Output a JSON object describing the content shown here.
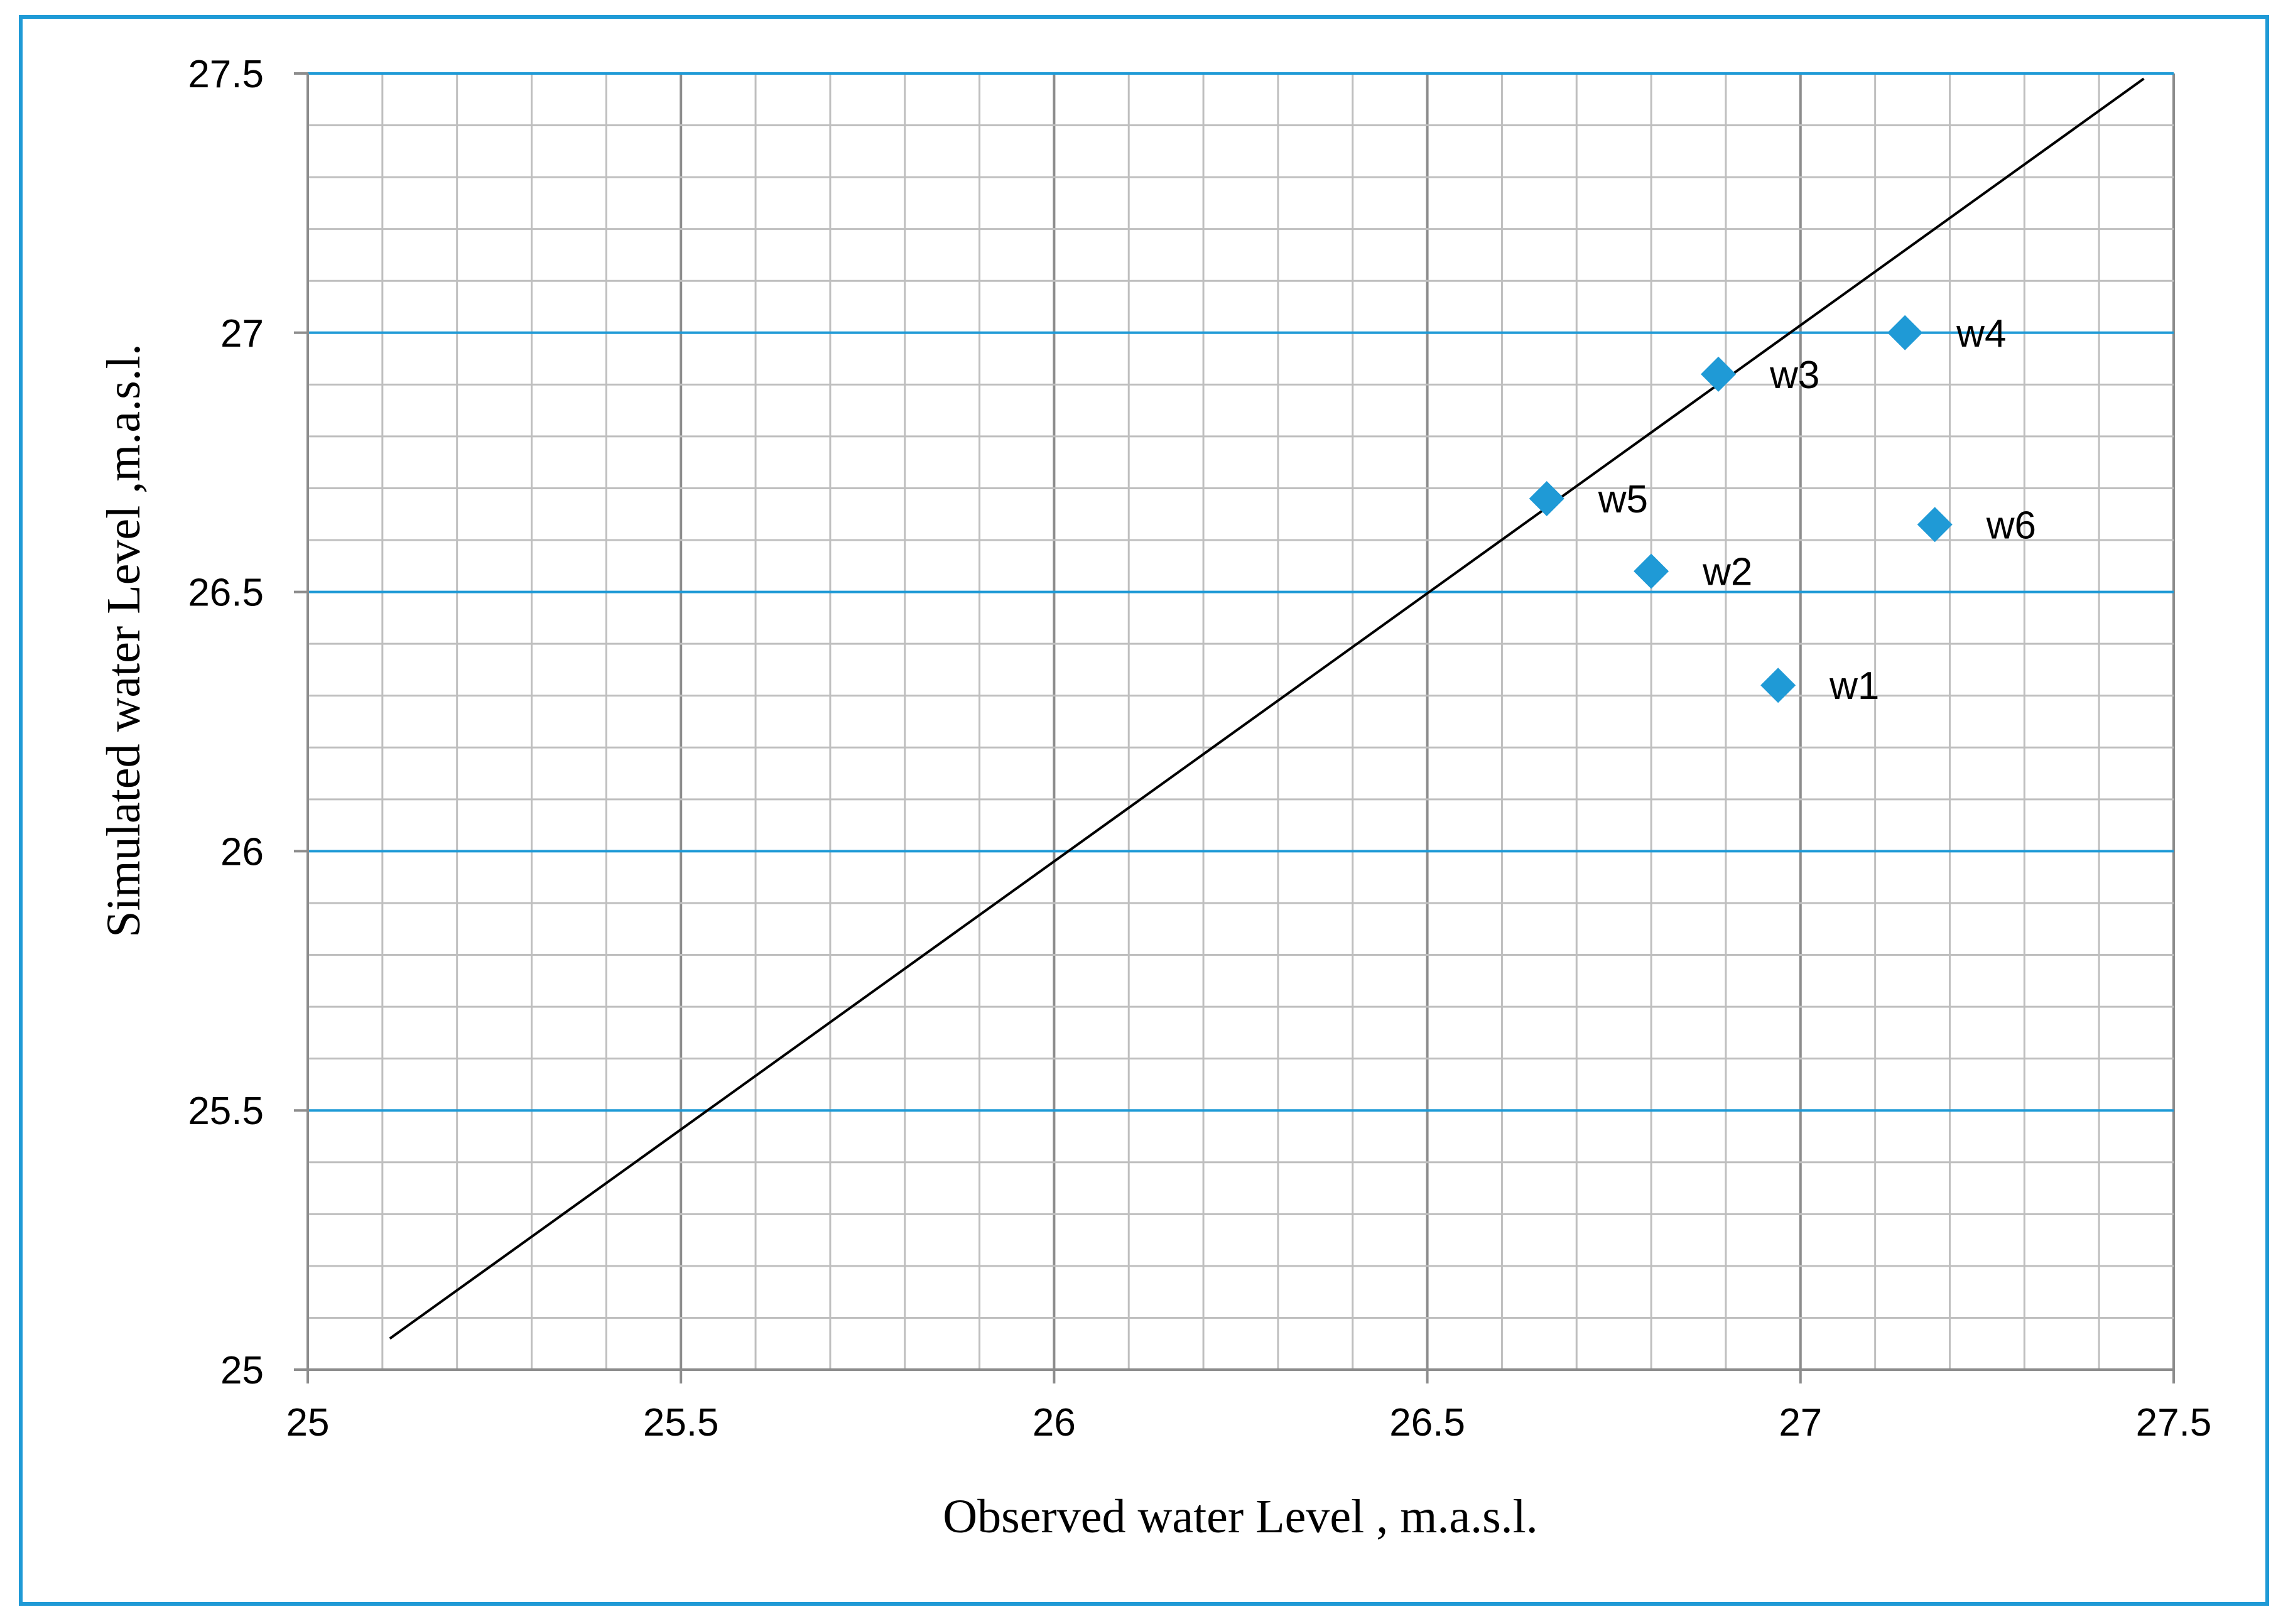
{
  "chart_data": {
    "type": "scatter",
    "title": "",
    "xlabel": "Observed water Level , m.a.s.l.",
    "ylabel": "Simulated water Level ,m.a.s.l.",
    "xlim": [
      25,
      27.5
    ],
    "ylim": [
      25,
      27.5
    ],
    "xticks": [
      "25",
      "25.5",
      "26",
      "26.5",
      "27",
      "27.5"
    ],
    "yticks": [
      "25",
      "25.5",
      "26",
      "26.5",
      "27",
      "27.5"
    ],
    "grid": true,
    "points": [
      {
        "name": "w1",
        "x": 26.97,
        "y": 26.32
      },
      {
        "name": "w2",
        "x": 26.8,
        "y": 26.54
      },
      {
        "name": "w3",
        "x": 26.89,
        "y": 26.92
      },
      {
        "name": "w4",
        "x": 27.14,
        "y": 27.0
      },
      {
        "name": "w5",
        "x": 26.66,
        "y": 26.68
      },
      {
        "name": "w6",
        "x": 27.18,
        "y": 26.63
      }
    ],
    "reference_line": {
      "x": [
        25.11,
        27.46
      ],
      "y": [
        25.06,
        27.49
      ]
    },
    "colors": {
      "marker": "#1f9ad6",
      "major_grid": "#1f9ad6",
      "minor_grid": "#bfbfbf",
      "line": "#000000",
      "frame": "#1f9ad6"
    }
  }
}
